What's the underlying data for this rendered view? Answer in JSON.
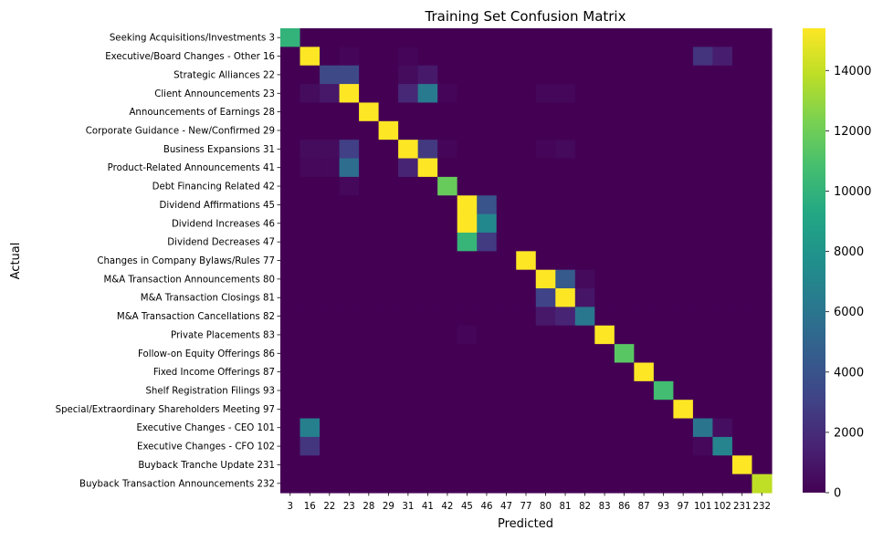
{
  "chart_data": {
    "type": "heatmap",
    "title": "Training Set Confusion Matrix",
    "xlabel": "Predicted",
    "ylabel": "Actual",
    "colormap": "viridis",
    "value_range": [
      0,
      15400
    ],
    "row_labels": [
      "Seeking Acquisitions/Investments  3",
      "Executive/Board Changes - Other  16",
      "Strategic Alliances  22",
      "Client Announcements  23",
      "Announcements of Earnings  28",
      "Corporate Guidance - New/Confirmed  29",
      "Business Expansions  31",
      "Product-Related Announcements  41",
      "Debt Financing Related  42",
      "Dividend Affirmations  45",
      "Dividend Increases  46",
      "Dividend Decreases  47",
      "Changes in Company Bylaws/Rules  77",
      "M&A Transaction Announcements  80",
      "M&A Transaction Closings  81",
      "M&A Transaction Cancellations  82",
      "Private Placements  83",
      "Follow-on Equity Offerings  86",
      "Fixed Income Offerings  87",
      "Shelf Registration Filings  93",
      "Special/Extraordinary Shareholders Meeting  97",
      "Executive Changes - CEO  101",
      "Executive Changes - CFO  102",
      "Buyback Tranche Update  231",
      "Buyback Transaction Announcements  232"
    ],
    "col_labels": [
      "3",
      "16",
      "22",
      "23",
      "28",
      "29",
      "31",
      "41",
      "42",
      "45",
      "46",
      "47",
      "77",
      "80",
      "81",
      "82",
      "83",
      "86",
      "87",
      "93",
      "97",
      "101",
      "102",
      "231",
      "232"
    ],
    "cells": [
      {
        "r": 0,
        "c": 0,
        "v": 10000
      },
      {
        "r": 1,
        "c": 1,
        "v": 15400
      },
      {
        "r": 1,
        "c": 3,
        "v": 200
      },
      {
        "r": 1,
        "c": 6,
        "v": 200
      },
      {
        "r": 1,
        "c": 21,
        "v": 2300
      },
      {
        "r": 1,
        "c": 22,
        "v": 1300
      },
      {
        "r": 2,
        "c": 2,
        "v": 3400
      },
      {
        "r": 2,
        "c": 3,
        "v": 3400
      },
      {
        "r": 2,
        "c": 6,
        "v": 500
      },
      {
        "r": 2,
        "c": 7,
        "v": 1100
      },
      {
        "r": 3,
        "c": 1,
        "v": 500
      },
      {
        "r": 3,
        "c": 2,
        "v": 1000
      },
      {
        "r": 3,
        "c": 3,
        "v": 15400
      },
      {
        "r": 3,
        "c": 6,
        "v": 1800
      },
      {
        "r": 3,
        "c": 7,
        "v": 6300
      },
      {
        "r": 3,
        "c": 8,
        "v": 200
      },
      {
        "r": 3,
        "c": 13,
        "v": 250
      },
      {
        "r": 3,
        "c": 14,
        "v": 250
      },
      {
        "r": 4,
        "c": 4,
        "v": 15400
      },
      {
        "r": 5,
        "c": 5,
        "v": 15400
      },
      {
        "r": 6,
        "c": 1,
        "v": 500
      },
      {
        "r": 6,
        "c": 2,
        "v": 500
      },
      {
        "r": 6,
        "c": 3,
        "v": 2900
      },
      {
        "r": 6,
        "c": 6,
        "v": 15400
      },
      {
        "r": 6,
        "c": 7,
        "v": 2600
      },
      {
        "r": 6,
        "c": 8,
        "v": 200
      },
      {
        "r": 6,
        "c": 13,
        "v": 200
      },
      {
        "r": 6,
        "c": 14,
        "v": 400
      },
      {
        "r": 7,
        "c": 1,
        "v": 300
      },
      {
        "r": 7,
        "c": 2,
        "v": 300
      },
      {
        "r": 7,
        "c": 3,
        "v": 5500
      },
      {
        "r": 7,
        "c": 6,
        "v": 1600
      },
      {
        "r": 7,
        "c": 7,
        "v": 15400
      },
      {
        "r": 8,
        "c": 3,
        "v": 300
      },
      {
        "r": 8,
        "c": 8,
        "v": 11800
      },
      {
        "r": 9,
        "c": 9,
        "v": 15400
      },
      {
        "r": 9,
        "c": 10,
        "v": 4000
      },
      {
        "r": 10,
        "c": 9,
        "v": 15400
      },
      {
        "r": 10,
        "c": 10,
        "v": 7200
      },
      {
        "r": 11,
        "c": 9,
        "v": 10200
      },
      {
        "r": 11,
        "c": 10,
        "v": 2700
      },
      {
        "r": 12,
        "c": 12,
        "v": 15400
      },
      {
        "r": 13,
        "c": 13,
        "v": 15400
      },
      {
        "r": 13,
        "c": 14,
        "v": 4400
      },
      {
        "r": 13,
        "c": 15,
        "v": 400
      },
      {
        "r": 14,
        "c": 13,
        "v": 3100
      },
      {
        "r": 14,
        "c": 14,
        "v": 15400
      },
      {
        "r": 14,
        "c": 15,
        "v": 900
      },
      {
        "r": 15,
        "c": 13,
        "v": 1000
      },
      {
        "r": 15,
        "c": 14,
        "v": 1600
      },
      {
        "r": 15,
        "c": 15,
        "v": 6100
      },
      {
        "r": 16,
        "c": 9,
        "v": 200
      },
      {
        "r": 16,
        "c": 16,
        "v": 15400
      },
      {
        "r": 17,
        "c": 17,
        "v": 11400
      },
      {
        "r": 18,
        "c": 18,
        "v": 15400
      },
      {
        "r": 19,
        "c": 19,
        "v": 10700
      },
      {
        "r": 20,
        "c": 20,
        "v": 15400
      },
      {
        "r": 21,
        "c": 1,
        "v": 6600
      },
      {
        "r": 21,
        "c": 21,
        "v": 5900
      },
      {
        "r": 21,
        "c": 22,
        "v": 600
      },
      {
        "r": 22,
        "c": 1,
        "v": 2400
      },
      {
        "r": 22,
        "c": 21,
        "v": 300
      },
      {
        "r": 22,
        "c": 22,
        "v": 6900
      },
      {
        "r": 23,
        "c": 23,
        "v": 15400
      },
      {
        "r": 24,
        "c": 24,
        "v": 13900
      }
    ],
    "colorbar_ticks": [
      0,
      2000,
      4000,
      6000,
      8000,
      10000,
      12000,
      14000
    ]
  }
}
